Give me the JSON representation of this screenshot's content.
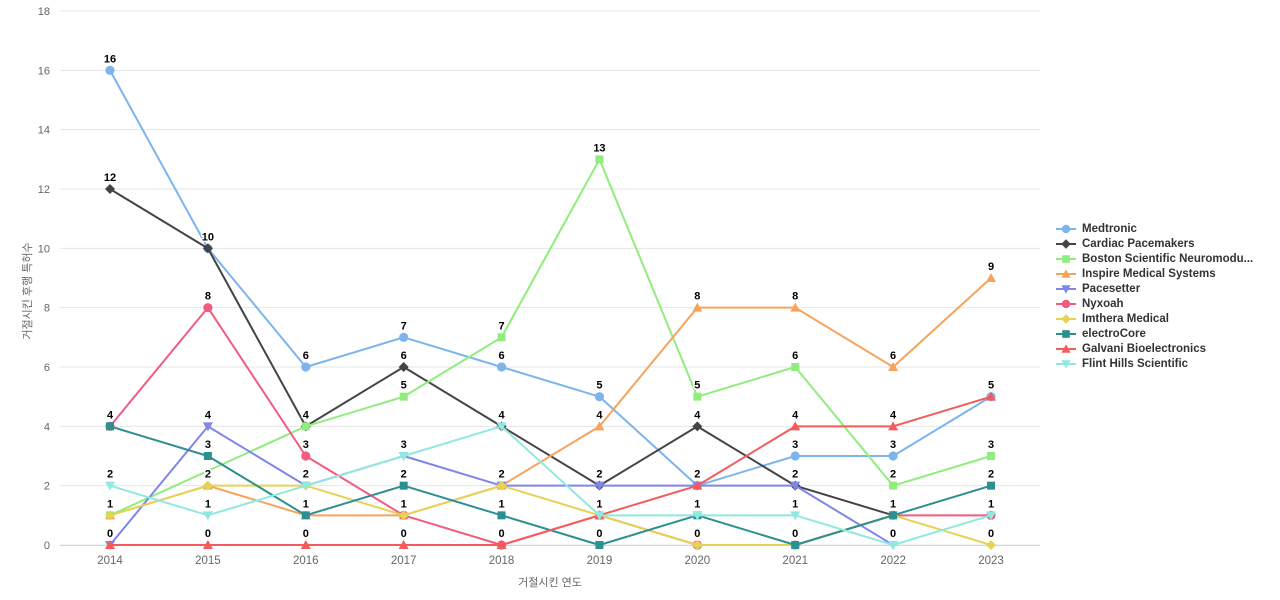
{
  "chart_data": {
    "type": "line",
    "categories": [
      "2014",
      "2015",
      "2016",
      "2017",
      "2018",
      "2019",
      "2020",
      "2021",
      "2022",
      "2023"
    ],
    "xlabel": "거절시킨 연도",
    "ylabel": "거절시킨 후행 특허수",
    "ylim": [
      0,
      18
    ],
    "yticks": [
      0,
      2,
      4,
      6,
      8,
      10,
      12,
      14,
      16,
      18
    ],
    "grid": "horizontal",
    "legend_position": "right",
    "data_labels": true,
    "axis_text_color": "#666666",
    "grid_color": "#e6e6e6",
    "axis_line_color": "#ccd6eb",
    "series": [
      {
        "name": "Medtronic",
        "color": "#7cb5ec",
        "marker": "circle",
        "values": [
          16,
          10,
          6,
          7,
          6,
          5,
          2,
          3,
          3,
          5
        ]
      },
      {
        "name": "Cardiac Pacemakers",
        "color": "#434348",
        "marker": "diamond",
        "values": [
          12,
          10,
          4,
          6,
          4,
          2,
          4,
          2,
          1,
          null
        ]
      },
      {
        "name": "Boston Scientific Neuromodu...",
        "color": "#90ed7d",
        "marker": "square",
        "values": [
          1,
          null,
          4,
          5,
          7,
          13,
          5,
          6,
          2,
          3
        ]
      },
      {
        "name": "Inspire Medical Systems",
        "color": "#f7a35c",
        "marker": "triangle",
        "values": [
          1,
          2,
          1,
          1,
          2,
          4,
          8,
          8,
          6,
          9
        ]
      },
      {
        "name": "Pacesetter",
        "color": "#8085e9",
        "marker": "triangle-down",
        "values": [
          0,
          4,
          2,
          3,
          2,
          2,
          2,
          2,
          0,
          null
        ]
      },
      {
        "name": "Nyxoah",
        "color": "#f15c80",
        "marker": "circle",
        "values": [
          4,
          8,
          3,
          1,
          0,
          1,
          0,
          0,
          1,
          1
        ]
      },
      {
        "name": "Imthera Medical",
        "color": "#e4d354",
        "marker": "diamond",
        "values": [
          1,
          2,
          2,
          1,
          2,
          1,
          0,
          0,
          1,
          0
        ]
      },
      {
        "name": "electroCore",
        "color": "#2b908f",
        "marker": "square",
        "values": [
          4,
          3,
          1,
          2,
          1,
          0,
          1,
          0,
          1,
          2
        ]
      },
      {
        "name": "Galvani Bioelectronics",
        "color": "#f45b5b",
        "marker": "triangle",
        "values": [
          0,
          0,
          0,
          0,
          0,
          1,
          2,
          4,
          4,
          5
        ]
      },
      {
        "name": "Flint Hills Scientific",
        "color": "#91e8e1",
        "marker": "triangle-down",
        "values": [
          2,
          1,
          2,
          3,
          4,
          1,
          1,
          1,
          0,
          1
        ]
      }
    ]
  }
}
